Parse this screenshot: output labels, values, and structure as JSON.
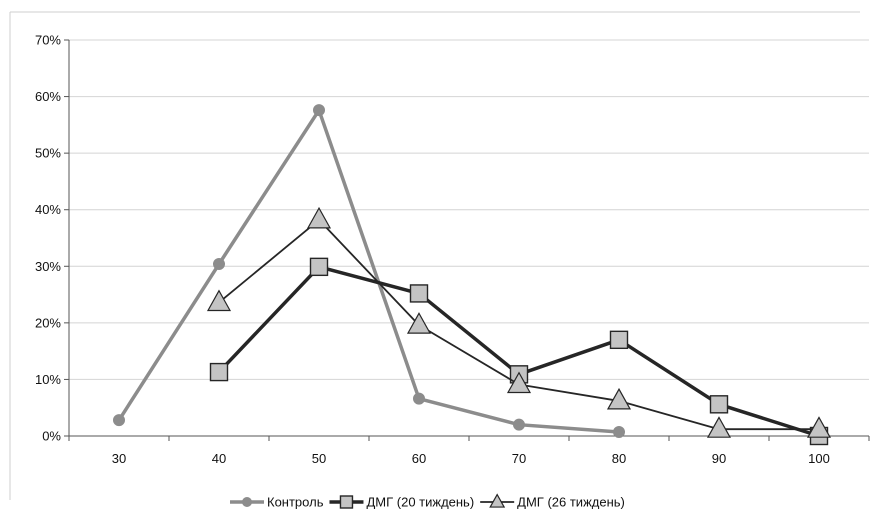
{
  "chart_data": {
    "type": "line",
    "title": "",
    "xlabel": "",
    "ylabel": "",
    "x": [
      30,
      40,
      50,
      60,
      70,
      80,
      90,
      100
    ],
    "xticklabels": [
      "30",
      "40",
      "50",
      "60",
      "70",
      "80",
      "90",
      "100"
    ],
    "ylim": [
      0,
      70
    ],
    "yticks": [
      0,
      10,
      20,
      30,
      40,
      50,
      60,
      70
    ],
    "yticklabels": [
      "0%",
      "10%",
      "20%",
      "30%",
      "40%",
      "50%",
      "60%",
      "70%"
    ],
    "grid": true,
    "legend_position": "bottom",
    "series": [
      {
        "name": "Контроль",
        "color": "#8c8c8c",
        "marker": "circle",
        "x": [
          30,
          40,
          50,
          60,
          70,
          80
        ],
        "values": [
          2.8,
          30.4,
          57.6,
          6.6,
          2.0,
          0.7
        ]
      },
      {
        "name": "ДМГ (20 тиждень)",
        "color": "#262626",
        "marker": "square",
        "x": [
          40,
          50,
          60,
          70,
          80,
          90,
          100
        ],
        "values": [
          11.3,
          29.9,
          25.2,
          10.9,
          17.0,
          5.6,
          0.0
        ]
      },
      {
        "name": "ДМГ (26 тиждень)",
        "color": "#262626",
        "marker": "triangle",
        "x": [
          40,
          50,
          60,
          70,
          80,
          90,
          100
        ],
        "values": [
          23.6,
          38.2,
          19.6,
          9.1,
          6.2,
          1.2,
          1.2
        ]
      }
    ]
  }
}
